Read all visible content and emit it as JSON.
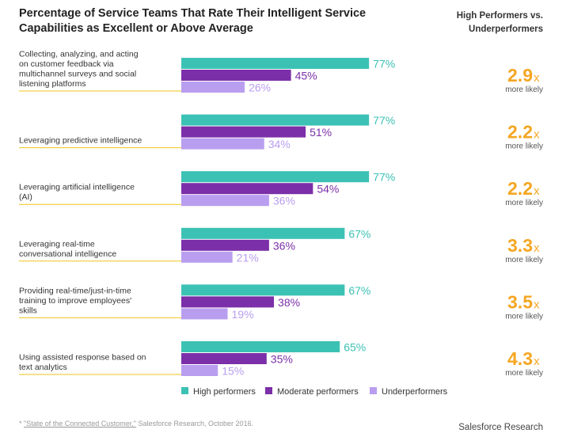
{
  "header": {
    "title": "Percentage of Service Teams That Rate Their Intelligent Service Capabilities as Excellent or Above Average",
    "comparison_header": "High Performers vs. Underperformers"
  },
  "footer": {
    "footnote_prefix": "* ",
    "footnote_source": "\"State of the Connected Customer,\"",
    "footnote_rest": " Salesforce Research, October 2016.",
    "brand": "Salesforce Research"
  },
  "colors": {
    "high": "#3cc2b4",
    "moderate": "#7b2fa8",
    "under": "#b99ef0",
    "multiplier": "#f5a623",
    "separator": "#f0c419"
  },
  "chart_data": {
    "type": "bar",
    "orientation": "horizontal",
    "xlim": [
      0,
      100
    ],
    "value_suffix": "%",
    "multiplier_suffix": "x",
    "multiplier_note": "more likely",
    "legend_position": "bottom",
    "categories": [
      "Collecting, analyzing, and acting on customer feedback via multichannel surveys and social listening platforms",
      "Leveraging predictive intelligence",
      "Leveraging artificial intelligence (AI)",
      "Leveraging real-time conversational intelligence",
      "Providing real-time/just-in-time training to improve employees' skills",
      "Using assisted response based on text analytics"
    ],
    "series": [
      {
        "name": "High performers",
        "values": [
          77,
          77,
          77,
          67,
          67,
          65
        ]
      },
      {
        "name": "Moderate performers",
        "values": [
          45,
          51,
          54,
          36,
          38,
          35
        ]
      },
      {
        "name": "Underperformers",
        "values": [
          26,
          34,
          36,
          21,
          19,
          15
        ]
      }
    ],
    "multipliers": [
      "2.9",
      "2.2",
      "2.2",
      "3.3",
      "3.5",
      "4.3"
    ]
  }
}
